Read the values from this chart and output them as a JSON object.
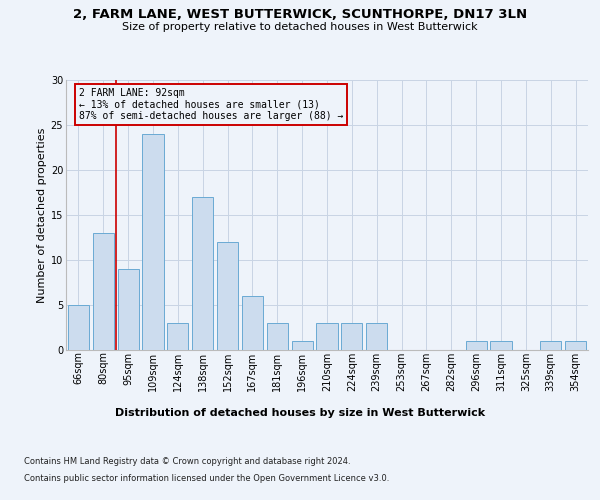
{
  "title": "2, FARM LANE, WEST BUTTERWICK, SCUNTHORPE, DN17 3LN",
  "subtitle": "Size of property relative to detached houses in West Butterwick",
  "xlabel": "Distribution of detached houses by size in West Butterwick",
  "ylabel": "Number of detached properties",
  "categories": [
    "66sqm",
    "80sqm",
    "95sqm",
    "109sqm",
    "124sqm",
    "138sqm",
    "152sqm",
    "167sqm",
    "181sqm",
    "196sqm",
    "210sqm",
    "224sqm",
    "239sqm",
    "253sqm",
    "267sqm",
    "282sqm",
    "296sqm",
    "311sqm",
    "325sqm",
    "339sqm",
    "354sqm"
  ],
  "values": [
    5,
    13,
    9,
    24,
    3,
    17,
    12,
    6,
    3,
    1,
    3,
    3,
    3,
    0,
    0,
    0,
    1,
    1,
    0,
    1,
    1
  ],
  "bar_color": "#ccdcee",
  "bar_edge_color": "#6aaad4",
  "grid_color": "#c8d4e4",
  "vline_x": 1.5,
  "vline_color": "#cc0000",
  "annotation_box_color": "#cc0000",
  "annotation_line1": "2 FARM LANE: 92sqm",
  "annotation_line2": "← 13% of detached houses are smaller (13)",
  "annotation_line3": "87% of semi-detached houses are larger (88) →",
  "footer1": "Contains HM Land Registry data © Crown copyright and database right 2024.",
  "footer2": "Contains public sector information licensed under the Open Government Licence v3.0.",
  "ylim": [
    0,
    30
  ],
  "yticks": [
    0,
    5,
    10,
    15,
    20,
    25,
    30
  ],
  "background_color": "#eef3fa",
  "title_fontsize": 9.5,
  "subtitle_fontsize": 8,
  "ylabel_fontsize": 8,
  "tick_fontsize": 7,
  "xlabel_fontsize": 8,
  "footer_fontsize": 6,
  "ann_fontsize": 7
}
